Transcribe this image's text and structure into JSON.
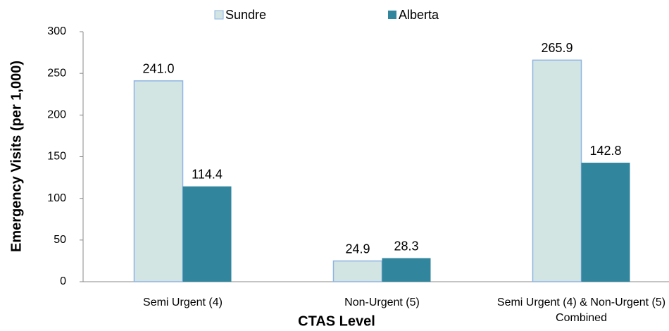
{
  "chart_data": {
    "type": "bar",
    "categories": [
      "Semi Urgent (4)",
      "Non-Urgent (5)",
      "Semi Urgent (4) & Non-Urgent (5) Combined"
    ],
    "series": [
      {
        "name": "Sundre",
        "color": "#d3e5e3",
        "values": [
          241.0,
          24.9,
          265.9
        ],
        "value_labels": [
          "241.0",
          "24.9",
          "265.9"
        ]
      },
      {
        "name": "Alberta",
        "color": "#31859c",
        "values": [
          114.4,
          28.3,
          142.8
        ],
        "value_labels": [
          "114.4",
          "28.3",
          "142.8"
        ]
      }
    ],
    "x_label": "CTAS Level",
    "y_label": "Emergency Visits (per 1,000)",
    "ylim": [
      0,
      300
    ],
    "yticks": [
      0,
      50,
      100,
      150,
      200,
      250,
      300
    ],
    "grid": false,
    "legend": "top"
  }
}
